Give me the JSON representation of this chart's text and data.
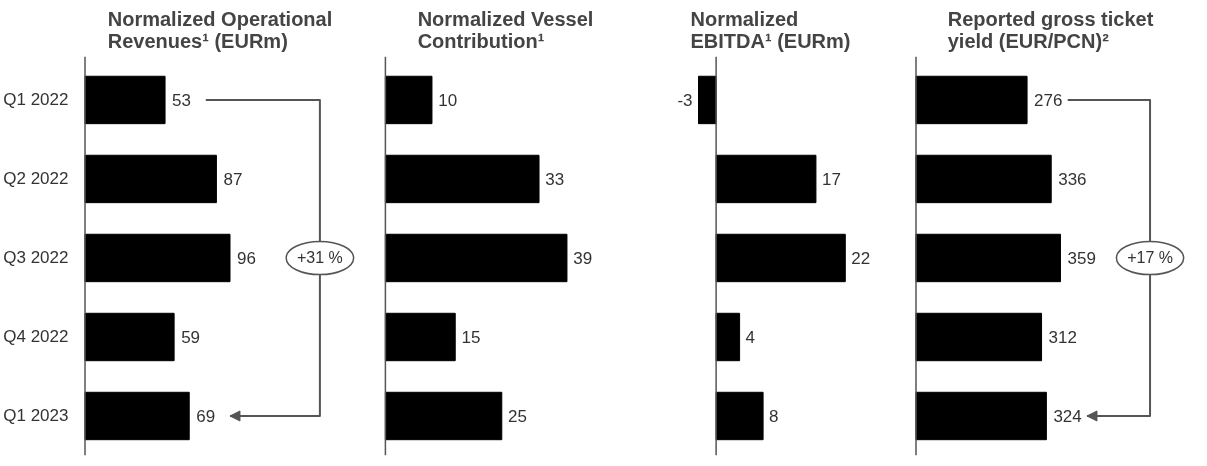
{
  "chart_data": [
    {
      "type": "bar",
      "orientation": "horizontal",
      "title": "Normalized Operational\nRevenues¹ (EURm)",
      "categories": [
        "Q1 2022",
        "Q2 2022",
        "Q3 2022",
        "Q4 2022",
        "Q1 2023"
      ],
      "values": [
        53,
        87,
        96,
        59,
        69
      ],
      "color": "#000000",
      "data_labels": true,
      "tick_labels": "y",
      "annotations": [
        "+31 %"
      ]
    },
    {
      "type": "bar",
      "orientation": "horizontal",
      "title": "Normalized Vessel\nContribution¹",
      "categories": [
        null,
        null,
        null,
        null,
        null
      ],
      "values": [
        10,
        33,
        39,
        15,
        25
      ],
      "color": "#000000",
      "data_labels": true,
      "tick_labels": "y"
    },
    {
      "type": "bar",
      "orientation": "horizontal",
      "title": "Normalized\nEBITDA¹ (EURm)",
      "categories": [
        null,
        null,
        null,
        null,
        null
      ],
      "values": [
        -3,
        17,
        22,
        4,
        8
      ],
      "color": "#000000",
      "data_labels": true,
      "tick_labels": "y"
    },
    {
      "type": "bar",
      "orientation": "horizontal",
      "title": "Reported gross ticket\nyield (EUR/PCN)²",
      "categories": [
        null,
        null,
        null,
        null,
        null
      ],
      "values": [
        276,
        336,
        359,
        312,
        324
      ],
      "color": "#000000",
      "data_labels": true,
      "tick_labels": "y",
      "annotations": [
        "+17 %"
      ]
    }
  ]
}
